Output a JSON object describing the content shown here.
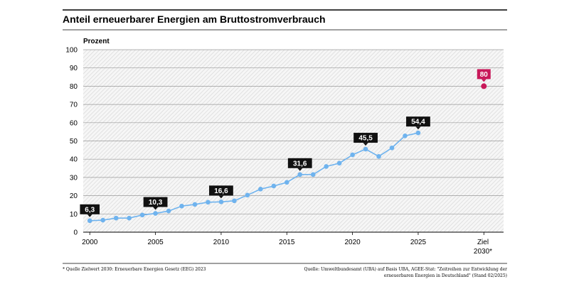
{
  "chart_data": {
    "type": "line",
    "title": "Anteil erneuerbarer Energien am Bruttostromverbrauch",
    "ylabel": "Prozent",
    "xlabel": "",
    "ylim": [
      0,
      100
    ],
    "yticks": [
      0,
      10,
      20,
      30,
      40,
      50,
      60,
      70,
      80,
      90,
      100
    ],
    "xticks": [
      "2000",
      "2005",
      "2010",
      "2015",
      "2020",
      "2025"
    ],
    "target_tick": [
      "Ziel",
      "2030*"
    ],
    "grid": true,
    "legend": "none",
    "series": [
      {
        "color": "#6fb3ee",
        "x": [
          2000,
          2001,
          2002,
          2003,
          2004,
          2005,
          2006,
          2007,
          2008,
          2009,
          2010,
          2011,
          2012,
          2013,
          2014,
          2015,
          2016,
          2017,
          2018,
          2019,
          2020,
          2021,
          2022,
          2023,
          2024,
          2025
        ],
        "values": [
          6.3,
          6.6,
          7.7,
          7.7,
          9.4,
          10.3,
          11.6,
          14.3,
          15.2,
          16.4,
          16.6,
          17.2,
          20.3,
          23.6,
          25.3,
          27.3,
          31.6,
          31.6,
          36.0,
          37.8,
          42.4,
          45.5,
          41.5,
          46.2,
          52.8,
          54.4
        ]
      }
    ],
    "data_labels": [
      {
        "x": 2000,
        "text": "6,3"
      },
      {
        "x": 2005,
        "text": "10,3"
      },
      {
        "x": 2010,
        "text": "16,6"
      },
      {
        "x": 2016,
        "text": "31,6"
      },
      {
        "x": 2021,
        "text": "45,5"
      },
      {
        "x": 2025,
        "text": "54,4"
      }
    ],
    "target": {
      "value": 80,
      "label": "80",
      "color": "#c8195a"
    },
    "colors": {
      "line": "#6fb3ee",
      "label_box": "#111111",
      "target": "#c8195a"
    }
  },
  "footnotes": {
    "left": "* Quelle Zielwert 2030: Erneuerbare Energien Gesetz (EEG) 2023",
    "right_line1": "Quelle: Umweltbundesamt (UBA) auf Basis UBA, AGEE-Stat: \"Zeitreihen zur Entwicklung der",
    "right_line2": "erneuerbaren Energien in Deutschland\" (Stand 02/2025)"
  }
}
